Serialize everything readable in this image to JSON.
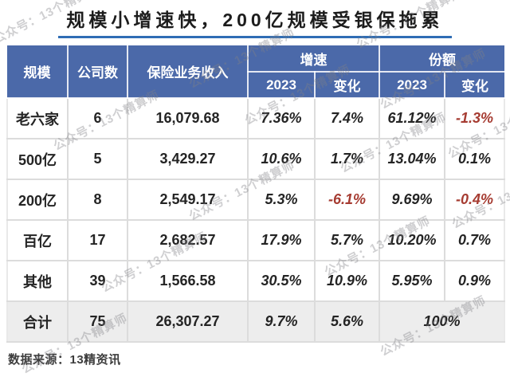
{
  "title": "规模小增速快，200亿规模受银保拖累",
  "watermark_text": "公众号：13个精算师",
  "source": "数据来源：13精资讯",
  "colors": {
    "header_bg": "#4b69a9",
    "title_underline": "#2f6db5",
    "negative_text": "#a63c32",
    "total_row_bg": "#ededed"
  },
  "table": {
    "headers": {
      "scale": "规模",
      "companies": "公司数",
      "revenue": "保险业务收入",
      "growth_group": "增速",
      "share_group": "份额",
      "growth_2023": "2023",
      "growth_change": "变化",
      "share_2023": "2023",
      "share_change": "变化"
    }
  },
  "chart_data": {
    "type": "table",
    "title": "规模小增速快，200亿规模受银保拖累",
    "columns": [
      "规模",
      "公司数",
      "保险业务收入",
      "增速 2023",
      "增速 变化",
      "份额 2023",
      "份额 变化"
    ],
    "rows": [
      {
        "scale": "老六家",
        "companies": "6",
        "revenue": "16,079.68",
        "growth_2023": "7.36%",
        "growth_change": "7.4%",
        "share_2023": "61.12%",
        "share_change": "-1.3%"
      },
      {
        "scale": "500亿",
        "companies": "5",
        "revenue": "3,429.27",
        "growth_2023": "10.6%",
        "growth_change": "1.7%",
        "share_2023": "13.04%",
        "share_change": "0.1%"
      },
      {
        "scale": "200亿",
        "companies": "8",
        "revenue": "2,549.17",
        "growth_2023": "5.3%",
        "growth_change": "-6.1%",
        "share_2023": "9.69%",
        "share_change": "-0.4%"
      },
      {
        "scale": "百亿",
        "companies": "17",
        "revenue": "2,682.57",
        "growth_2023": "17.9%",
        "growth_change": "5.7%",
        "share_2023": "10.20%",
        "share_change": "0.7%"
      },
      {
        "scale": "其他",
        "companies": "39",
        "revenue": "1,566.58",
        "growth_2023": "30.5%",
        "growth_change": "10.9%",
        "share_2023": "5.95%",
        "share_change": "0.9%"
      }
    ],
    "total_row": {
      "scale": "合计",
      "companies": "75",
      "revenue": "26,307.27",
      "growth_2023": "9.7%",
      "growth_change": "5.6%",
      "share_total": "100%"
    },
    "source": "数据来源：13精资讯"
  }
}
